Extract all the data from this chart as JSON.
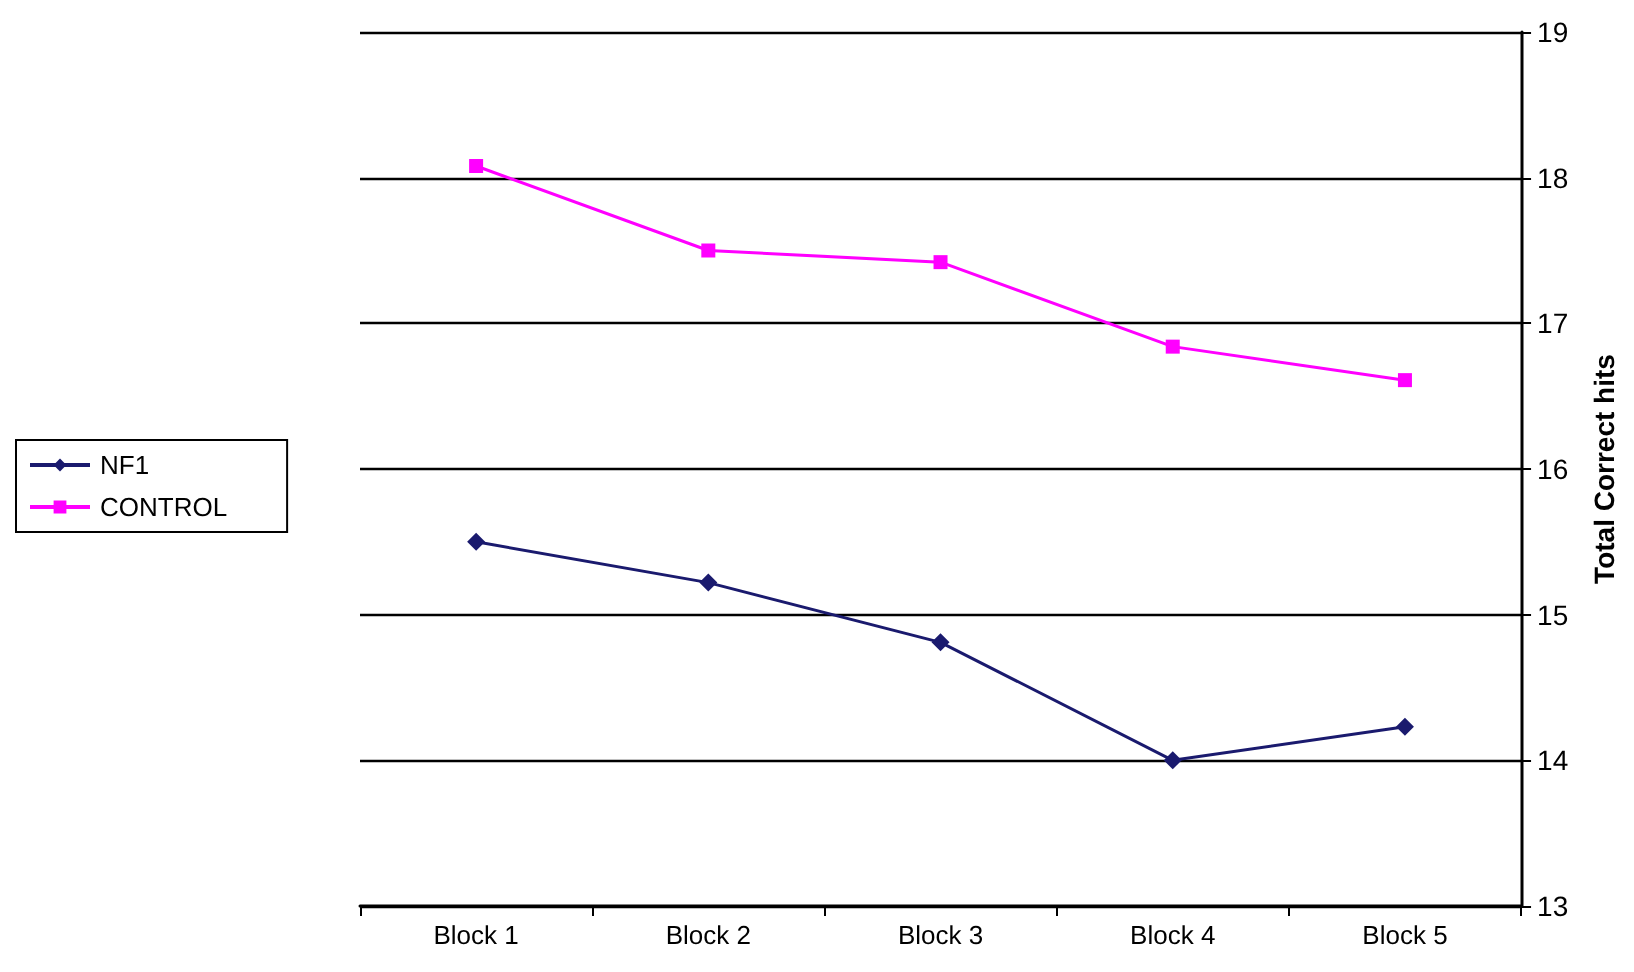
{
  "chart_data": {
    "type": "line",
    "y2label": "Total Correct hits",
    "categories": [
      "Block 1",
      "Block 2",
      "Block 3",
      "Block 4",
      "Block 5"
    ],
    "series": [
      {
        "name": "NF1",
        "color": "#1a1a6e",
        "marker": "diamond",
        "values": [
          15.5,
          15.22,
          14.81,
          14.0,
          14.23
        ]
      },
      {
        "name": "CONTROL",
        "color": "#ff00ff",
        "marker": "square",
        "values": [
          18.08,
          17.5,
          17.42,
          16.84,
          16.61
        ]
      }
    ],
    "ylim": [
      13,
      19
    ],
    "yticks": [
      13,
      14,
      15,
      16,
      17,
      18,
      19
    ],
    "grid": "y",
    "legend": "left"
  }
}
